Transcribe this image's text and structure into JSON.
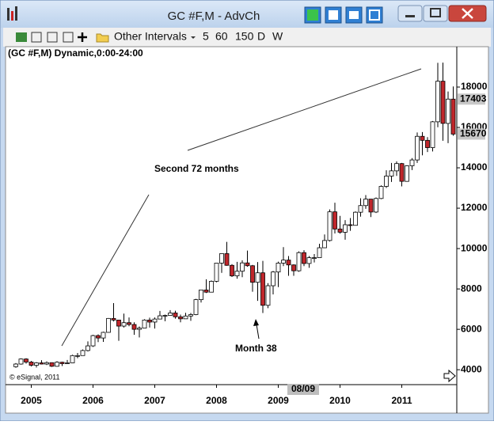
{
  "window": {
    "title": "GC #F,M - AdvCh"
  },
  "toolbar": {
    "interval_menu": "Other Intervals",
    "intervals": [
      "5",
      "60",
      "150",
      "D",
      "W"
    ]
  },
  "chart_data": {
    "type": "candlestick",
    "title": "(GC #F,M) Dynamic,0:00-24:00",
    "annotations": [
      "Second 72 months",
      "Month 38"
    ],
    "copyright": "© eSignal, 2011",
    "cursor_label": "08/09",
    "categories": [
      null,
      null,
      null,
      "2005",
      null,
      null,
      null,
      null,
      null,
      null,
      null,
      null,
      null,
      null,
      null,
      "2006",
      null,
      null,
      null,
      null,
      null,
      null,
      null,
      null,
      null,
      null,
      null,
      "2007",
      null,
      null,
      null,
      null,
      null,
      null,
      null,
      null,
      null,
      null,
      null,
      "2008",
      null,
      null,
      null,
      null,
      null,
      null,
      null,
      null,
      null,
      null,
      null,
      "2009",
      null,
      null,
      null,
      null,
      null,
      null,
      null,
      null,
      null,
      null,
      null,
      "2010",
      null,
      null,
      null,
      null,
      null,
      null,
      null,
      null,
      null,
      null,
      null,
      "2011",
      null,
      null,
      null,
      null,
      null,
      null,
      null,
      null,
      null,
      null
    ],
    "open": [
      4150,
      4280,
      4530,
      4380,
      4220,
      4340,
      4280,
      4350,
      4170,
      4370,
      4300,
      4340,
      4700,
      4700,
      4950,
      5180,
      5690,
      5570,
      5850,
      6540,
      6460,
      6160,
      6330,
      6240,
      6000,
      6060,
      6460,
      6360,
      6510,
      6670,
      6690,
      6810,
      6620,
      6520,
      6660,
      6730,
      7470,
      7950,
      7840,
      8380,
      9280,
      9750,
      9170,
      8650,
      8880,
      9290,
      9150,
      8330,
      8800,
      7190,
      8160,
      8840,
      9280,
      9430,
      9190,
      8900,
      9800,
      9260,
      9550,
      9550,
      10040,
      10400,
      11820,
      10970,
      10810,
      11180,
      11150,
      11800,
      12130,
      12450,
      11810,
      12480,
      13080,
      13590,
      13850,
      14210,
      13330,
      14100,
      14390,
      15560,
      15360,
      15000,
      16280,
      18290,
      16200,
      17403
    ],
    "high": [
      4330,
      4560,
      4570,
      4430,
      4380,
      4470,
      4410,
      4350,
      4420,
      4400,
      4480,
      4740,
      4830,
      5000,
      5400,
      5730,
      5750,
      5880,
      6560,
      7300,
      6470,
      6780,
      6590,
      6350,
      6140,
      6500,
      6580,
      6590,
      6910,
      6730,
      6950,
      6920,
      6730,
      6820,
      6810,
      7510,
      7960,
      8480,
      8420,
      9300,
      9750,
      10330,
      9230,
      9340,
      9420,
      9900,
      9190,
      9330,
      9390,
      8290,
      8890,
      9350,
      10070,
      9630,
      9220,
      9860,
      9920,
      9630,
      9730,
      10240,
      10700,
      11940,
      12270,
      11620,
      11410,
      11510,
      11840,
      12490,
      12650,
      12450,
      12530,
      13130,
      13880,
      14240,
      14320,
      14240,
      14130,
      14480,
      15750,
      15770,
      15520,
      16320,
      19200,
      19210,
      17780,
      18030
    ],
    "low": [
      4100,
      4250,
      4300,
      4160,
      4110,
      4260,
      4230,
      4140,
      4150,
      4180,
      4280,
      4330,
      4570,
      4690,
      4900,
      5130,
      5370,
      5380,
      5840,
      6390,
      5430,
      6090,
      6150,
      5730,
      5600,
      6050,
      6090,
      6040,
      6500,
      6400,
      6680,
      6530,
      6350,
      6520,
      6420,
      6700,
      7330,
      7800,
      7850,
      8330,
      8800,
      9150,
      8590,
      8510,
      8580,
      9100,
      7860,
      7410,
      6810,
      7050,
      7730,
      8090,
      9130,
      8650,
      8650,
      8850,
      9130,
      9050,
      9310,
      9550,
      10030,
      10350,
      10750,
      10740,
      10440,
      10880,
      11140,
      11580,
      11970,
      11560,
      11760,
      12450,
      13000,
      13300,
      13600,
      13080,
      13310,
      13890,
      14240,
      14620,
      14780,
      14810,
      16010,
      15340,
      15220,
      15590
    ],
    "close": [
      4280,
      4530,
      4380,
      4220,
      4340,
      4280,
      4350,
      4170,
      4370,
      4300,
      4340,
      4700,
      4700,
      4950,
      5180,
      5690,
      5570,
      5850,
      6540,
      6460,
      6160,
      6330,
      6240,
      6000,
      6060,
      6460,
      6360,
      6510,
      6670,
      6690,
      6810,
      6620,
      6520,
      6660,
      6730,
      7470,
      7950,
      7840,
      8380,
      9280,
      9750,
      9170,
      8650,
      8880,
      9290,
      9150,
      8330,
      8800,
      7190,
      8160,
      8840,
      9280,
      9430,
      9190,
      8900,
      9800,
      9260,
      9550,
      9550,
      10040,
      10400,
      11820,
      10970,
      10810,
      11180,
      11150,
      11800,
      12130,
      12450,
      11810,
      12480,
      13080,
      13590,
      13850,
      14210,
      13330,
      14100,
      14390,
      15560,
      15360,
      15000,
      16280,
      18290,
      16200,
      17403,
      15670
    ],
    "up_color": "#ffffff",
    "down_color": "#c0262b",
    "ylim": [
      3300,
      19960
    ],
    "yticks": [
      4000,
      6000,
      8000,
      10000,
      12000,
      14000,
      16000,
      18000
    ],
    "price_markers": [
      17403,
      15670
    ]
  }
}
